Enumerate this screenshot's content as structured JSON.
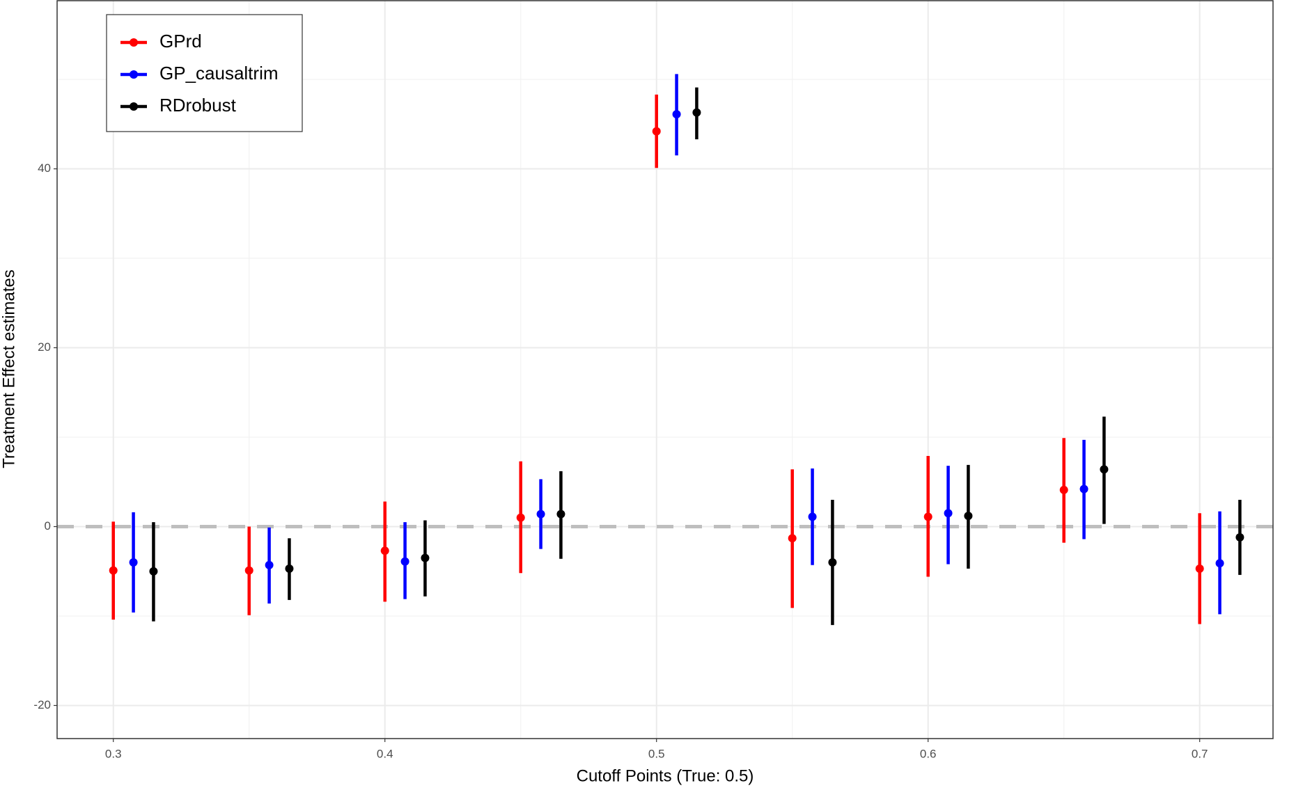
{
  "chart_data": {
    "type": "errorbar",
    "xlabel": "Cutoff Points (True: 0.5)",
    "ylabel": "Treatment Effect estimates",
    "x": [
      0.3,
      0.35,
      0.4,
      0.45,
      0.5,
      0.55,
      0.6,
      0.65,
      0.7
    ],
    "series": [
      {
        "name": "GPrd",
        "color": "#ff0000",
        "values": [
          -4.9,
          -4.9,
          -2.7,
          1.0,
          44.2,
          -1.3,
          1.1,
          4.1,
          -4.7
        ],
        "lower": [
          -10.4,
          -9.9,
          -8.4,
          -5.2,
          40.1,
          -9.1,
          -5.6,
          -1.8,
          -10.9
        ],
        "upper": [
          0.55,
          0,
          2.8,
          7.3,
          48.3,
          6.4,
          7.9,
          9.9,
          1.5
        ]
      },
      {
        "name": "GP_causaltrim",
        "color": "#0000ff",
        "values": [
          -4.0,
          -4.3,
          -3.9,
          1.4,
          46.1,
          1.1,
          1.5,
          4.2,
          -4.1
        ],
        "lower": [
          -9.6,
          -8.6,
          -8.1,
          -2.5,
          41.5,
          -4.3,
          -4.2,
          -1.4,
          -9.8
        ],
        "upper": [
          1.6,
          -0.1,
          0.5,
          5.3,
          50.6,
          6.5,
          6.8,
          9.7,
          1.7
        ]
      },
      {
        "name": "RDrobust",
        "color": "#000000",
        "values": [
          -5.0,
          -4.7,
          -3.5,
          1.4,
          46.3,
          -4.0,
          1.2,
          6.4,
          -1.2
        ],
        "lower": [
          -10.6,
          -8.2,
          -7.8,
          -3.6,
          43.3,
          -11.0,
          -4.7,
          0.3,
          -5.4
        ],
        "upper": [
          0.5,
          -1.3,
          0.7,
          6.2,
          49.1,
          3.0,
          6.9,
          12.3,
          3.0
        ]
      }
    ],
    "hline": 0,
    "xlim": [
      0.2793,
      0.727
    ],
    "ylim": [
      -23.7,
      58.8
    ],
    "xticks": [
      0.3,
      0.4,
      0.5,
      0.6,
      0.7
    ],
    "yticks": [
      -20,
      0,
      20,
      40
    ],
    "grid": true,
    "legend": "top-left"
  }
}
